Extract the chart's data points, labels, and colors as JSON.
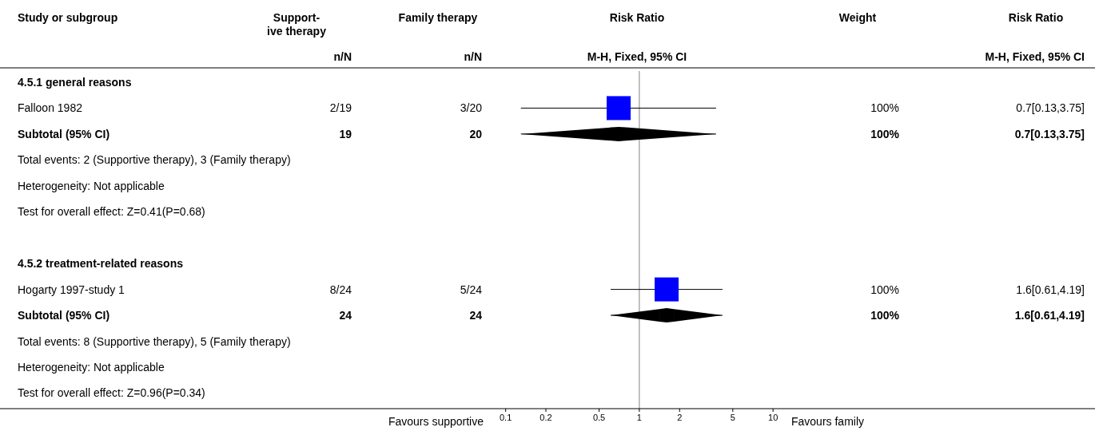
{
  "chart_data": [
    {
      "type": "other",
      "title": "Study or subgroup",
      "categories": [
        "4.5.1 general reasons",
        "Falloon 1982",
        "Subtotal (95% CI)",
        "Total events: 2 (Supportive therapy), 3 (Family therapy)",
        "Heterogeneity: Not applicable",
        "Test for overall effect: Z=0.41(P=0.68)",
        null,
        "4.5.2 treatment-related reasons",
        "Hogarty 1997-study 1",
        "Subtotal (95% CI)",
        "Total events: 8 (Supportive therapy), 5 (Family therapy)",
        "Heterogeneity: Not applicable",
        "Test for overall effect: Z=0.96(P=0.34)"
      ]
    },
    {
      "type": "other",
      "title": "Support-\nive therapy",
      "subtitle": "n/N",
      "categories": [
        null,
        "2/19",
        "19",
        null,
        null,
        null,
        null,
        null,
        "8/24",
        "24",
        null,
        null,
        null
      ]
    },
    {
      "type": "other",
      "title": "Family therapy",
      "subtitle": "n/N",
      "categories": [
        null,
        "3/20",
        "20",
        null,
        null,
        null,
        null,
        null,
        "5/24",
        "24",
        null,
        null,
        null
      ]
    },
    {
      "type": "scatter",
      "title": "Risk Ratio",
      "subtitle": "M-H, Fixed, 95% CI",
      "orientation": "horizontal",
      "log": "x",
      "xlim": [
        0.09,
        10.4
      ],
      "xticks": [
        0.1,
        0.2,
        0.5,
        1,
        2,
        5,
        10
      ],
      "tick_labels": "x",
      "categories": [
        null,
        null,
        null,
        null,
        null,
        null,
        null,
        null,
        null,
        null,
        null,
        null,
        null
      ],
      "series": [
        {
          "type": "scatter",
          "marker": "square",
          "color": "#0000ff",
          "values": [
            null,
            0.7,
            null,
            null,
            null,
            null,
            null,
            null,
            1.6,
            null,
            null,
            null,
            null
          ],
          "errors": [
            null,
            [
              0.13,
              3.75
            ],
            null,
            null,
            null,
            null,
            null,
            null,
            [
              0.61,
              4.19
            ],
            null,
            null,
            null,
            null
          ]
        },
        {
          "type": "scatter",
          "marker": "diamond",
          "color": "#000000",
          "values": [
            null,
            null,
            0.7,
            null,
            null,
            null,
            null,
            null,
            null,
            1.6,
            null,
            null,
            null
          ],
          "errors": [
            null,
            null,
            [
              0.13,
              3.75
            ],
            null,
            null,
            null,
            null,
            null,
            null,
            [
              0.61,
              4.19
            ],
            null,
            null,
            null
          ]
        }
      ],
      "ref_lines": [
        {
          "axis": "x",
          "value": 1,
          "color": "#808080"
        }
      ],
      "annotations": [
        "Favours supportive",
        "Favours family"
      ]
    },
    {
      "type": "other",
      "title": "Weight",
      "categories": [
        null,
        "100%",
        "100%",
        null,
        null,
        null,
        null,
        null,
        "100%",
        "100%",
        null,
        null,
        null
      ]
    },
    {
      "type": "other",
      "title": "Risk Ratio",
      "subtitle": "M-H, Fixed, 95% CI",
      "categories": [
        null,
        "0.7[0.13,3.75]",
        "0.7[0.13,3.75]",
        null,
        null,
        null,
        null,
        null,
        "1.6[0.61,4.19]",
        "1.6[0.61,4.19]",
        null,
        null,
        null
      ]
    }
  ]
}
